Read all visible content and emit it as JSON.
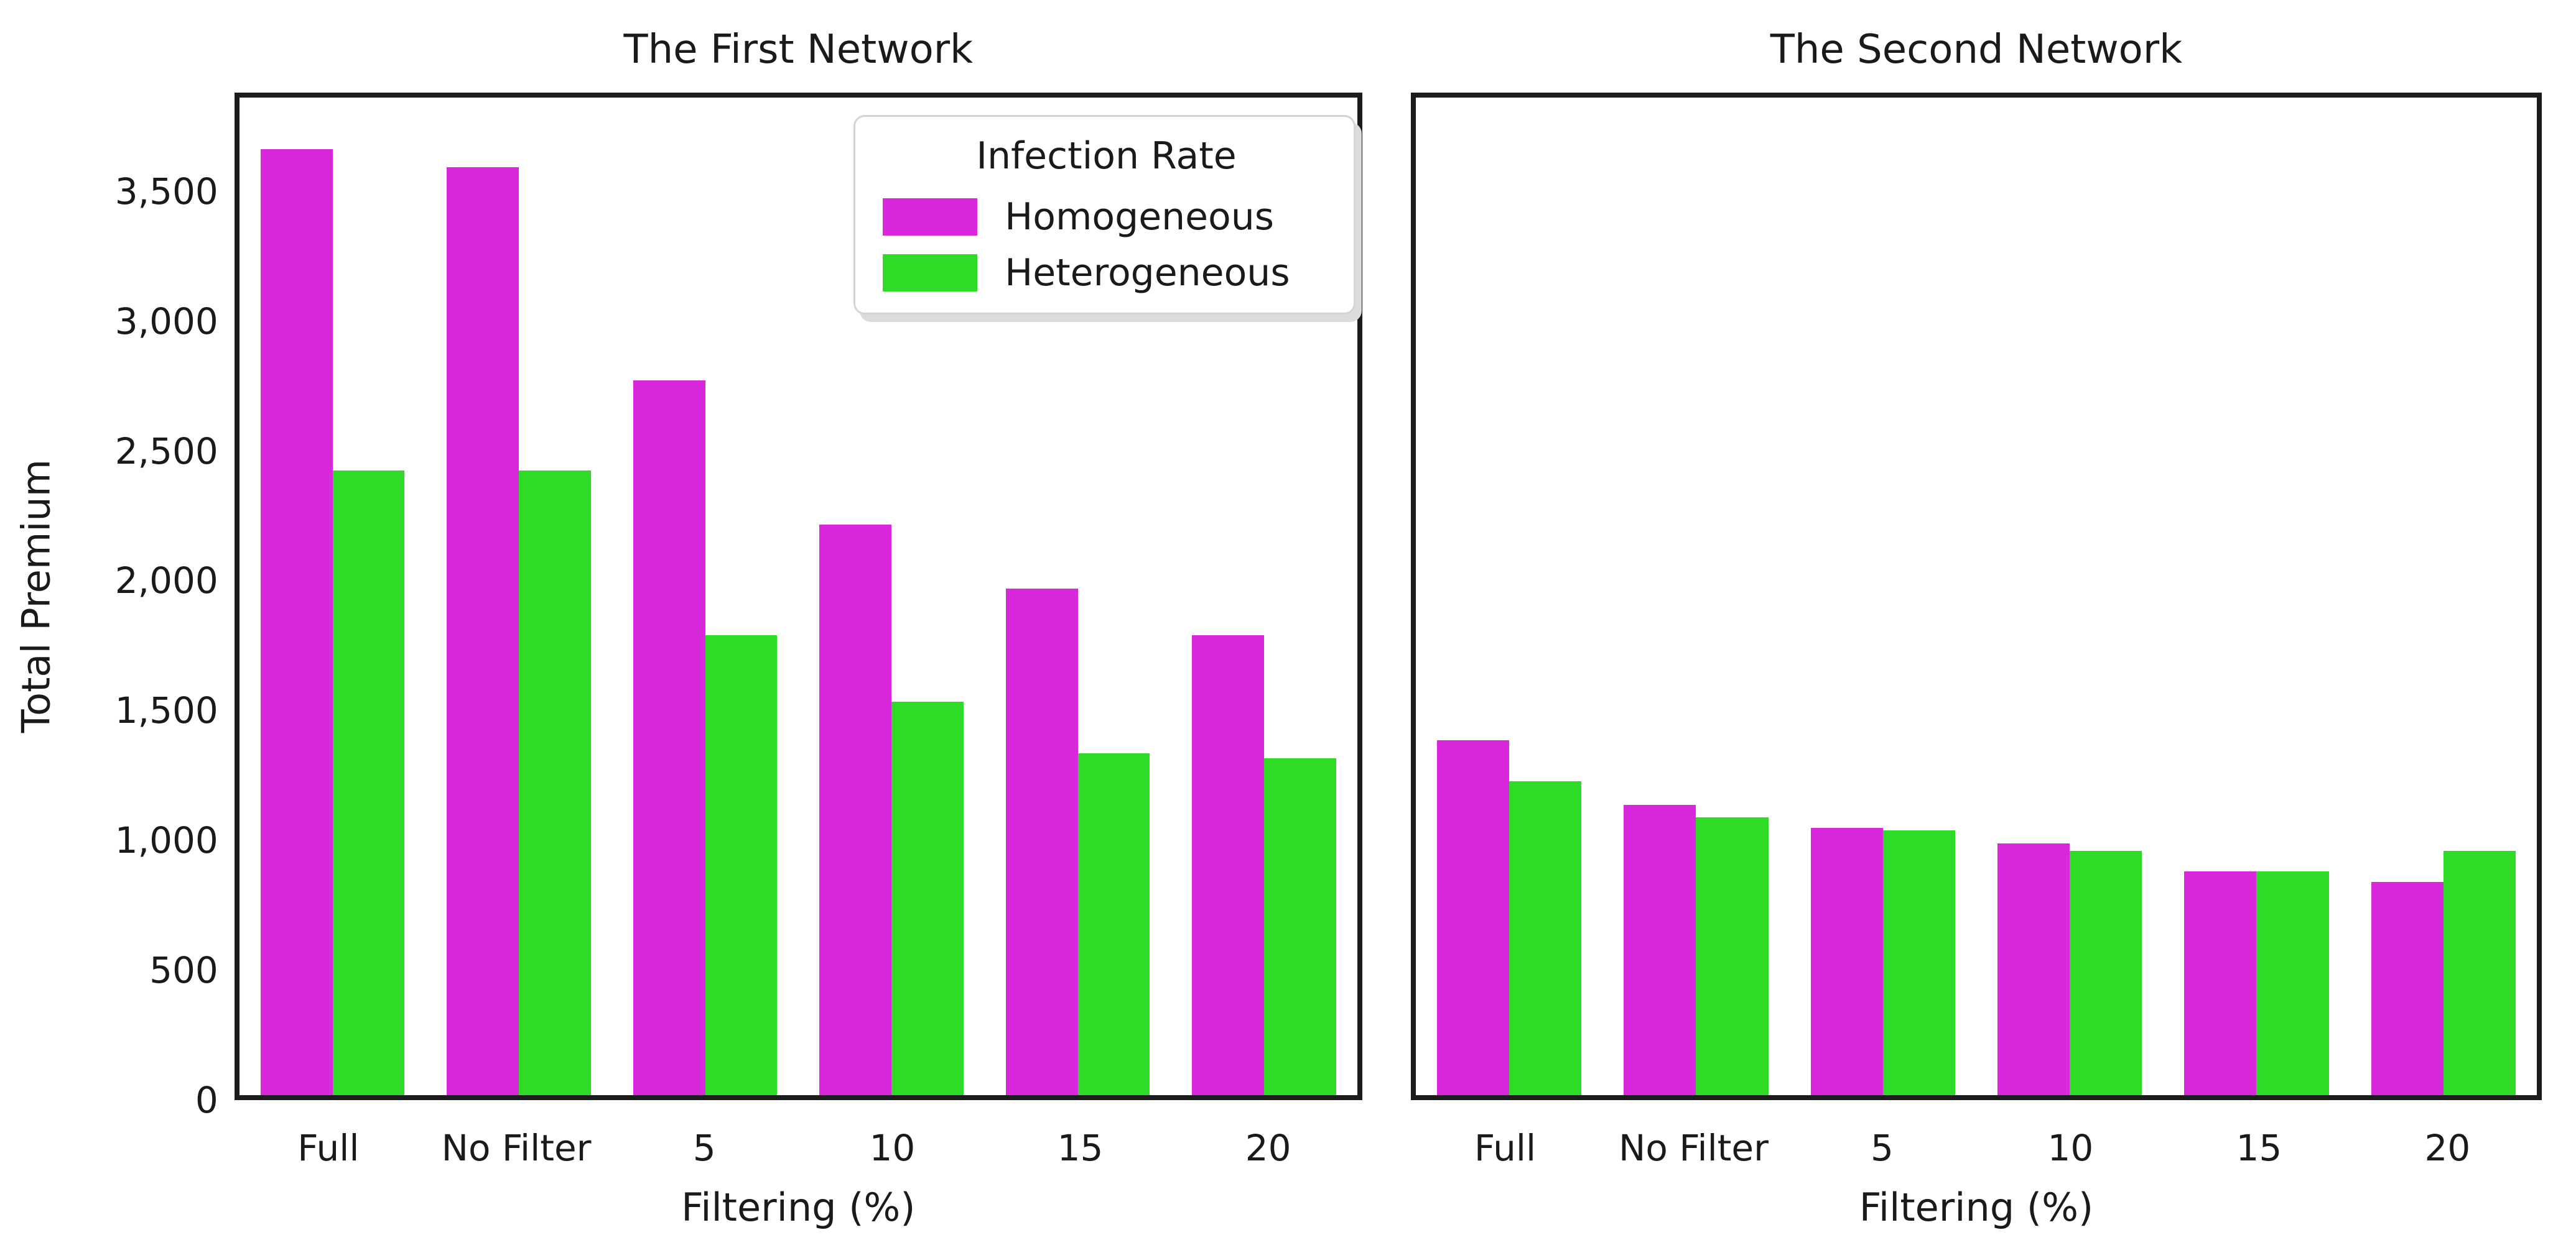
{
  "shared": {
    "y_label": "Total Premium",
    "x_label": "Filtering (%)",
    "background": "#ffffff",
    "spine_color": "#1c1c1c",
    "text_color": "#1a1a1a"
  },
  "legend": {
    "title": "Infection Rate",
    "entries": [
      {
        "label": "Homogeneous",
        "color": "#d928dc"
      },
      {
        "label": "Heterogeneous",
        "color": "#2edb26"
      }
    ],
    "position": "upper right"
  },
  "y_ticks": {
    "values": [
      0,
      500,
      1000,
      1500,
      2000,
      2500,
      3000,
      3500
    ],
    "labels": [
      "0",
      "500",
      "1,000",
      "1,500",
      "2,000",
      "2,500",
      "3,000",
      "3,500"
    ]
  },
  "chart_data": [
    {
      "type": "bar",
      "title": "The First Network",
      "xlabel": "Filtering (%)",
      "ylabel": "Total Premium",
      "categories": [
        "Full",
        "No Filter",
        "5",
        "10",
        "15",
        "20"
      ],
      "series": [
        {
          "name": "Homogeneous",
          "color": "#d928dc",
          "values": [
            3680,
            3610,
            2780,
            2220,
            1970,
            1790
          ]
        },
        {
          "name": "Heterogeneous",
          "color": "#2edb26",
          "values": [
            2430,
            2430,
            1790,
            1530,
            1330,
            1310
          ]
        }
      ],
      "ylim": [
        0,
        3880
      ],
      "grid": false,
      "legend_position": "upper right"
    },
    {
      "type": "bar",
      "title": "The Second Network",
      "xlabel": "Filtering (%)",
      "ylabel": "",
      "categories": [
        "Full",
        "No Filter",
        "5",
        "10",
        "15",
        "20"
      ],
      "series": [
        {
          "name": "Homogeneous",
          "color": "#d928dc",
          "values": [
            1380,
            1130,
            1040,
            980,
            870,
            830
          ]
        },
        {
          "name": "Heterogeneous",
          "color": "#2edb26",
          "values": [
            1220,
            1080,
            1030,
            950,
            870,
            950
          ]
        }
      ],
      "ylim": [
        0,
        3880
      ],
      "grid": false,
      "legend_position": null
    }
  ]
}
